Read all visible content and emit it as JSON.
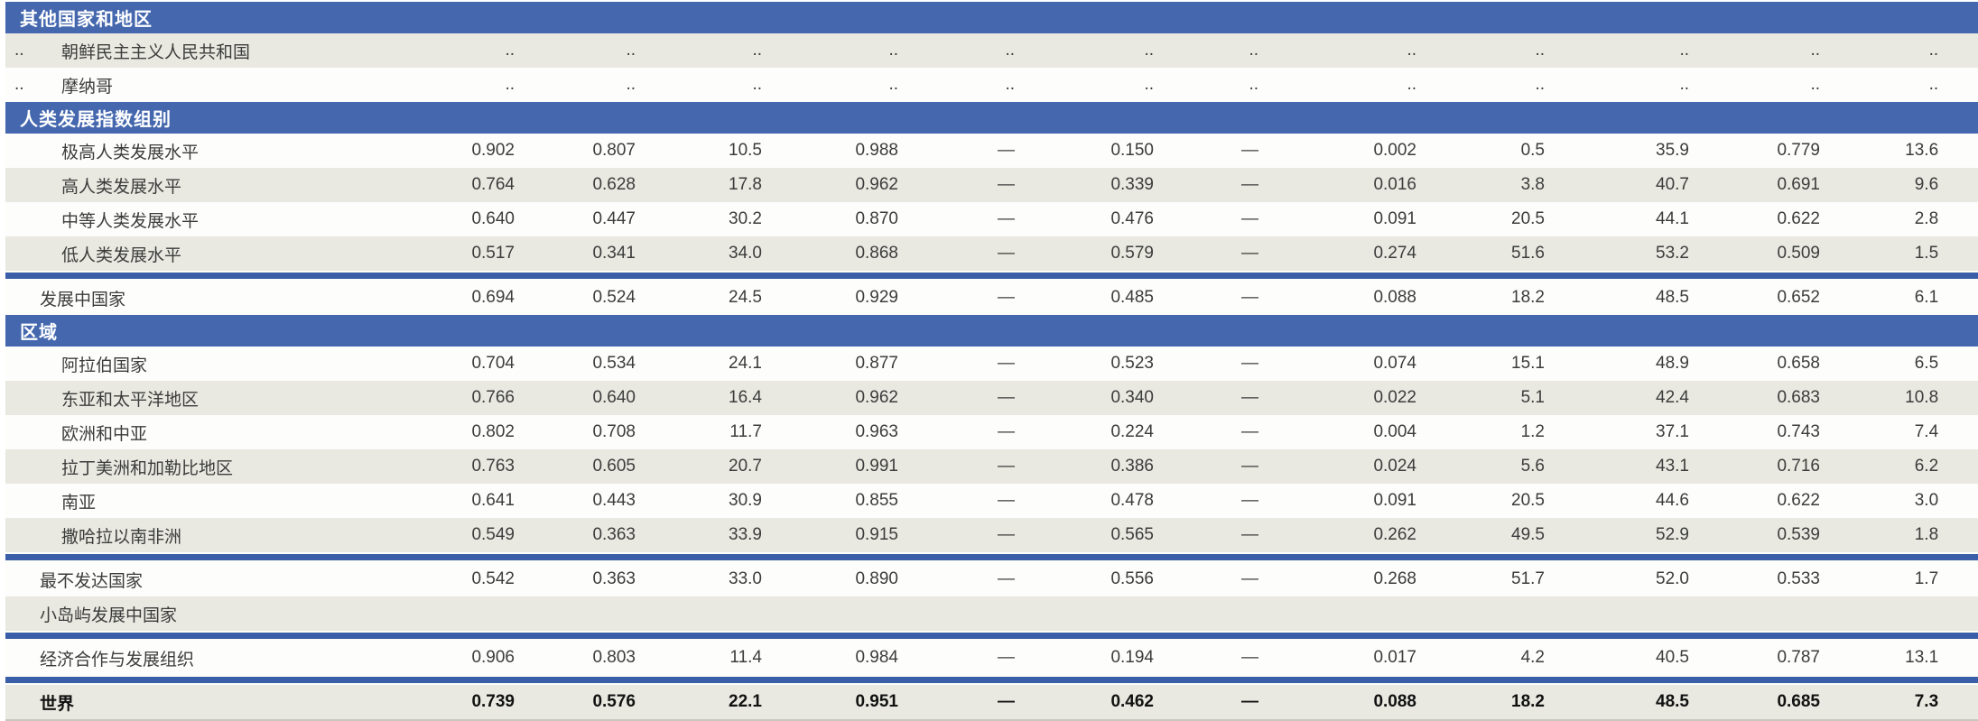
{
  "document": {
    "language": "zh",
    "description_note": "statistical table fragment with aggregate human development indicators",
    "colors": {
      "band_blue": "#4467ae",
      "separator_blue": "#3a5fa8",
      "row_shade": "#e9e9e1",
      "row_white": "#fdfdfb",
      "text_dark": "#1f1f1f",
      "bottom_rule": "#c7c7bf"
    },
    "placeholders": {
      "missing_value": "..",
      "not_applicable": "—"
    }
  },
  "chart_data": {
    "type": "table",
    "num_value_columns": 12,
    "rows_note": "see table.rows"
  },
  "table": {
    "rows": [
      {
        "type": "band",
        "label": "其他国家和地区"
      },
      {
        "type": "data",
        "shade": "shaded",
        "rank": "..",
        "name": "朝鲜民主主义人民共和国",
        "indent": true,
        "bold": false,
        "values": [
          "..",
          "..",
          "..",
          "..",
          "..",
          "..",
          "..",
          "..",
          "..",
          "..",
          "..",
          ".."
        ]
      },
      {
        "type": "data",
        "shade": "white",
        "rank": "..",
        "name": "摩纳哥",
        "indent": true,
        "bold": false,
        "values": [
          "..",
          "..",
          "..",
          "..",
          "..",
          "..",
          "..",
          "..",
          "..",
          "..",
          "..",
          ".."
        ]
      },
      {
        "type": "band",
        "label": "人类发展指数组别"
      },
      {
        "type": "data",
        "shade": "white",
        "rank": "",
        "name": "极高人类发展水平",
        "indent": true,
        "bold": false,
        "values": [
          "0.902",
          "0.807",
          "10.5",
          "0.988",
          "—",
          "0.150",
          "—",
          "0.002",
          "0.5",
          "35.9",
          "0.779",
          "13.6"
        ]
      },
      {
        "type": "data",
        "shade": "shaded",
        "rank": "",
        "name": "高人类发展水平",
        "indent": true,
        "bold": false,
        "values": [
          "0.764",
          "0.628",
          "17.8",
          "0.962",
          "—",
          "0.339",
          "—",
          "0.016",
          "3.8",
          "40.7",
          "0.691",
          "9.6"
        ]
      },
      {
        "type": "data",
        "shade": "white",
        "rank": "",
        "name": "中等人类发展水平",
        "indent": true,
        "bold": false,
        "values": [
          "0.640",
          "0.447",
          "30.2",
          "0.870",
          "—",
          "0.476",
          "—",
          "0.091",
          "20.5",
          "44.1",
          "0.622",
          "2.8"
        ]
      },
      {
        "type": "data",
        "shade": "shaded",
        "rank": "",
        "name": "低人类发展水平",
        "indent": true,
        "bold": false,
        "values": [
          "0.517",
          "0.341",
          "34.0",
          "0.868",
          "—",
          "0.579",
          "—",
          "0.274",
          "51.6",
          "53.2",
          "0.509",
          "1.5"
        ]
      },
      {
        "type": "separator"
      },
      {
        "type": "data",
        "shade": "white",
        "rank": "",
        "name": "发展中国家",
        "indent": false,
        "bold": false,
        "values": [
          "0.694",
          "0.524",
          "24.5",
          "0.929",
          "—",
          "0.485",
          "—",
          "0.088",
          "18.2",
          "48.5",
          "0.652",
          "6.1"
        ]
      },
      {
        "type": "band",
        "label": "区域"
      },
      {
        "type": "data",
        "shade": "white",
        "rank": "",
        "name": "阿拉伯国家",
        "indent": true,
        "bold": false,
        "values": [
          "0.704",
          "0.534",
          "24.1",
          "0.877",
          "—",
          "0.523",
          "—",
          "0.074",
          "15.1",
          "48.9",
          "0.658",
          "6.5"
        ]
      },
      {
        "type": "data",
        "shade": "shaded",
        "rank": "",
        "name": "东亚和太平洋地区",
        "indent": true,
        "bold": false,
        "values": [
          "0.766",
          "0.640",
          "16.4",
          "0.962",
          "—",
          "0.340",
          "—",
          "0.022",
          "5.1",
          "42.4",
          "0.683",
          "10.8"
        ]
      },
      {
        "type": "data",
        "shade": "white",
        "rank": "",
        "name": "欧洲和中亚",
        "indent": true,
        "bold": false,
        "values": [
          "0.802",
          "0.708",
          "11.7",
          "0.963",
          "—",
          "0.224",
          "—",
          "0.004",
          "1.2",
          "37.1",
          "0.743",
          "7.4"
        ]
      },
      {
        "type": "data",
        "shade": "shaded",
        "rank": "",
        "name": "拉丁美洲和加勒比地区",
        "indent": true,
        "bold": false,
        "values": [
          "0.763",
          "0.605",
          "20.7",
          "0.991",
          "—",
          "0.386",
          "—",
          "0.024",
          "5.6",
          "43.1",
          "0.716",
          "6.2"
        ]
      },
      {
        "type": "data",
        "shade": "white",
        "rank": "",
        "name": "南亚",
        "indent": true,
        "bold": false,
        "values": [
          "0.641",
          "0.443",
          "30.9",
          "0.855",
          "—",
          "0.478",
          "—",
          "0.091",
          "20.5",
          "44.6",
          "0.622",
          "3.0"
        ]
      },
      {
        "type": "data",
        "shade": "shaded",
        "rank": "",
        "name": "撒哈拉以南非洲",
        "indent": true,
        "bold": false,
        "values": [
          "0.549",
          "0.363",
          "33.9",
          "0.915",
          "—",
          "0.565",
          "—",
          "0.262",
          "49.5",
          "52.9",
          "0.539",
          "1.8"
        ]
      },
      {
        "type": "separator"
      },
      {
        "type": "data",
        "shade": "white",
        "rank": "",
        "name": "最不发达国家",
        "indent": false,
        "bold": false,
        "values": [
          "0.542",
          "0.363",
          "33.0",
          "0.890",
          "—",
          "0.556",
          "—",
          "0.268",
          "51.7",
          "52.0",
          "0.533",
          "1.7"
        ]
      },
      {
        "type": "data",
        "shade": "shaded",
        "rank": "",
        "name": "小岛屿发展中国家",
        "indent": false,
        "bold": false,
        "values": [
          "",
          "",
          "",
          "",
          "",
          "",
          "",
          "",
          "",
          "",
          "",
          ""
        ]
      },
      {
        "type": "separator"
      },
      {
        "type": "data",
        "shade": "white",
        "rank": "",
        "name": "经济合作与发展组织",
        "indent": false,
        "bold": false,
        "values": [
          "0.906",
          "0.803",
          "11.4",
          "0.984",
          "—",
          "0.194",
          "—",
          "0.017",
          "4.2",
          "40.5",
          "0.787",
          "13.1"
        ]
      },
      {
        "type": "separator"
      },
      {
        "type": "data",
        "shade": "shaded",
        "rank": "",
        "name": "世界",
        "indent": false,
        "bold": true,
        "values": [
          "0.739",
          "0.576",
          "22.1",
          "0.951",
          "—",
          "0.462",
          "—",
          "0.088",
          "18.2",
          "48.5",
          "0.685",
          "7.3"
        ]
      }
    ]
  }
}
